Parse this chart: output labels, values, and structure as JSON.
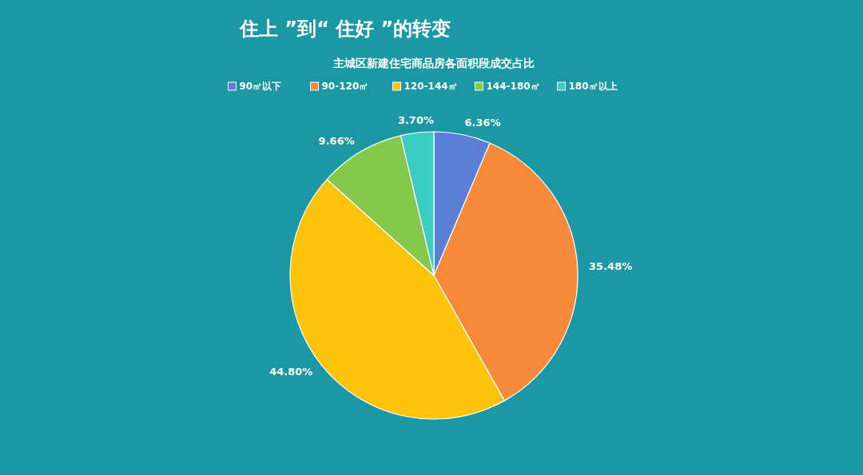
{
  "chart_data": {
    "type": "pie",
    "title": "住上 ”到“ 住好 ”的转变",
    "subtitle": "主城区新建住宅商品房各面积段成交占比",
    "categories": [
      "90㎡以下",
      "90-120㎡",
      "120-144㎡",
      "144-180㎡",
      "180㎡以上"
    ],
    "values": [
      6.36,
      35.48,
      44.8,
      9.66,
      3.7
    ],
    "value_labels": [
      "6.36%",
      "35.48%",
      "44.80%",
      "9.66%",
      "3.70%"
    ],
    "colors": [
      "#5b7fd6",
      "#f68a3a",
      "#fcc30b",
      "#84c94b",
      "#3ccdc2"
    ],
    "legend": "top"
  }
}
